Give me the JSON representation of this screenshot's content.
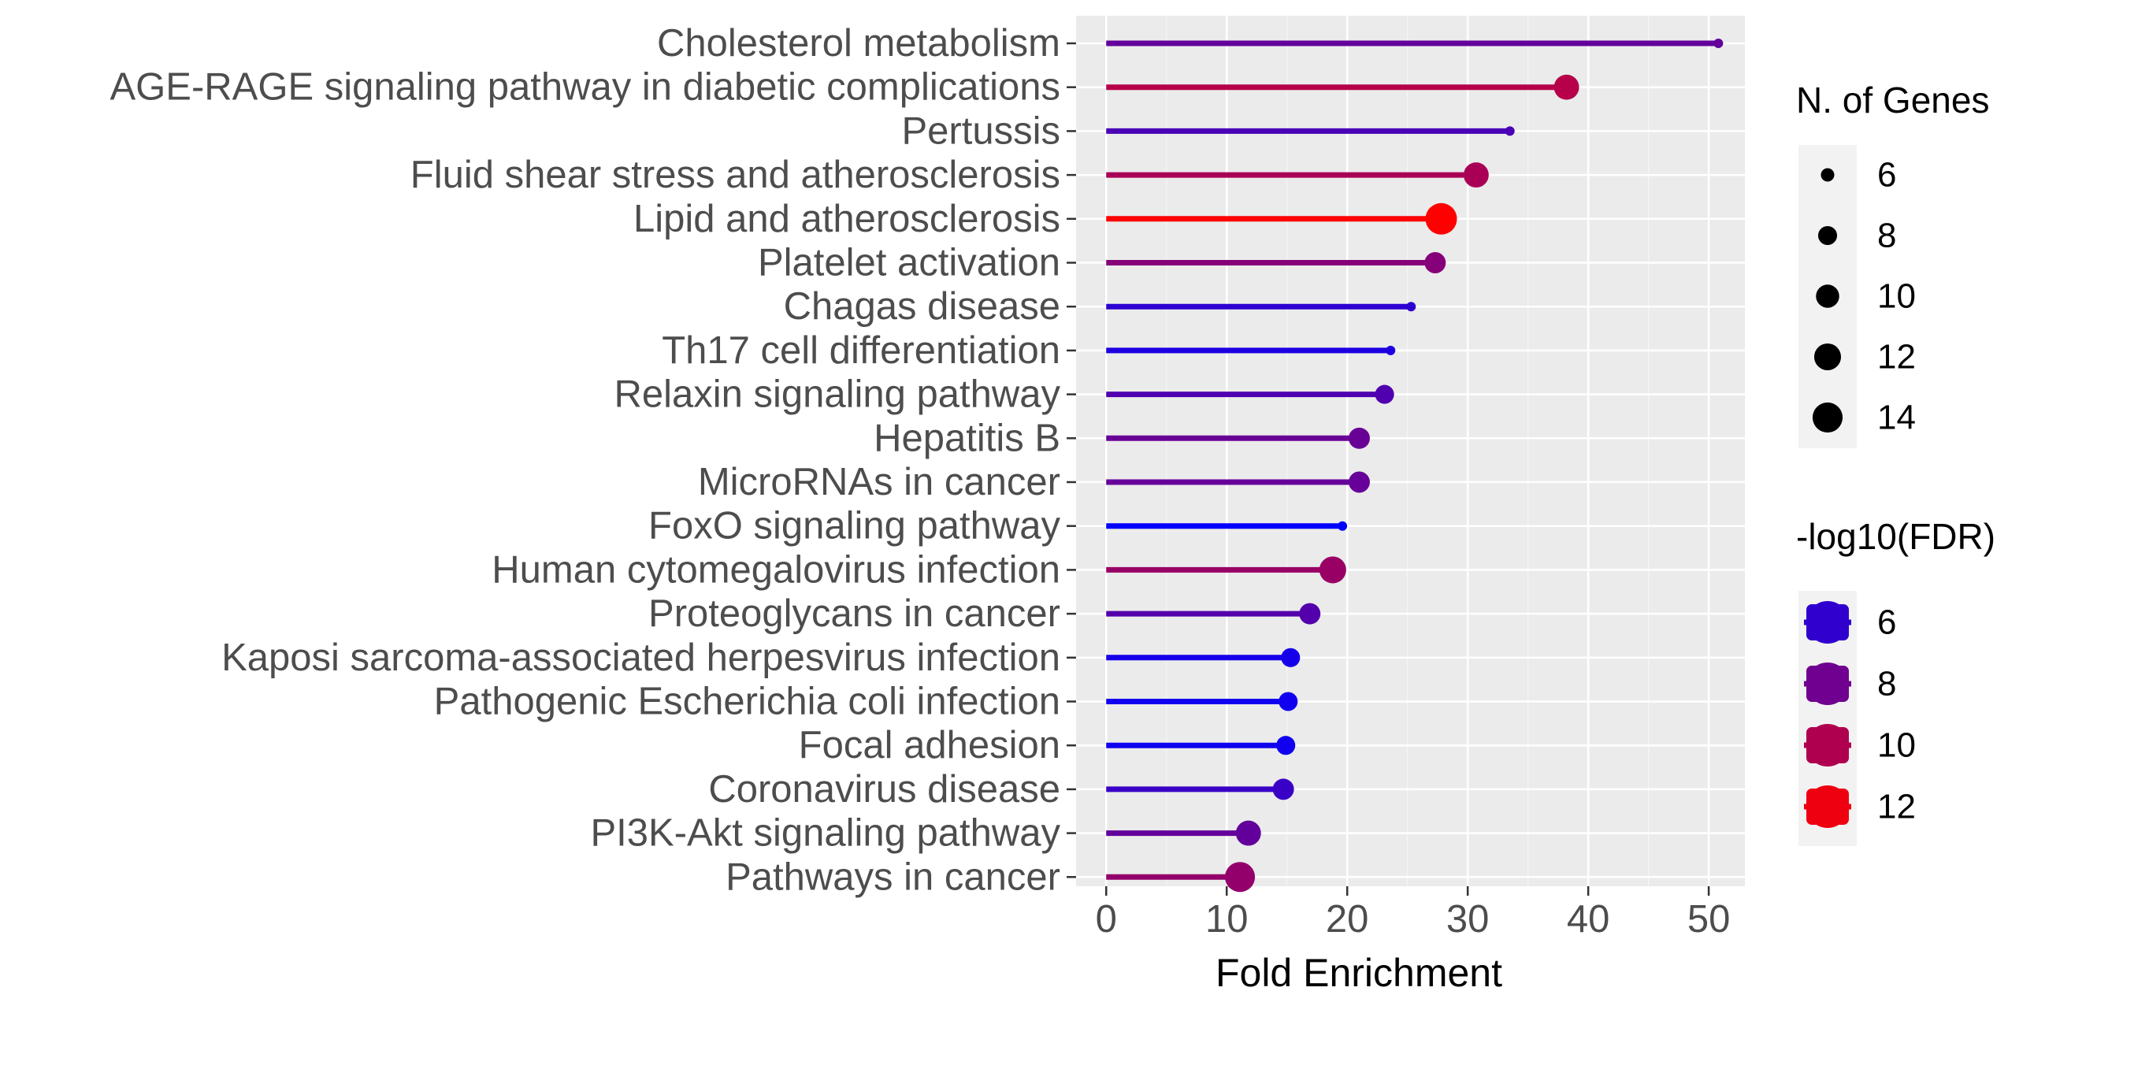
{
  "chart_data": {
    "type": "lollipop",
    "title": "",
    "xlabel": "Fold Enrichment",
    "ylabel": "",
    "xlim": [
      -2.5,
      53
    ],
    "xticks": [
      0,
      10,
      20,
      30,
      40,
      50
    ],
    "categories": [
      "Cholesterol metabolism",
      "AGE-RAGE signaling pathway in diabetic complications",
      "Pertussis",
      "Fluid shear stress and atherosclerosis",
      "Lipid and atherosclerosis",
      "Platelet activation",
      "Chagas disease",
      "Th17 cell differentiation",
      "Relaxin signaling pathway",
      "Hepatitis B",
      "MicroRNAs in cancer",
      "FoxO signaling pathway",
      "Human cytomegalovirus infection",
      "Proteoglycans in cancer",
      "Kaposi sarcoma-associated herpesvirus infection",
      "Pathogenic Escherichia coli infection",
      "Focal adhesion",
      "Coronavirus disease",
      "PI3K-Akt signaling pathway",
      "Pathways in cancer"
    ],
    "series": [
      {
        "name": "Fold Enrichment",
        "values": [
          50.8,
          38.2,
          33.5,
          30.7,
          27.8,
          27.3,
          25.3,
          23.6,
          23.1,
          21.0,
          21.0,
          19.6,
          18.8,
          16.9,
          15.3,
          15.1,
          14.9,
          14.7,
          11.8,
          11.1
        ]
      },
      {
        "name": "N. of Genes",
        "values": [
          5,
          11,
          5,
          11,
          15,
          9,
          5,
          5,
          8,
          9,
          9,
          5,
          12,
          9,
          8,
          8,
          8,
          9,
          11,
          14
        ]
      },
      {
        "name": "-log10(FDR)",
        "values": [
          7.6,
          10.2,
          6.8,
          9.8,
          12.5,
          8.7,
          5.9,
          5.4,
          7.0,
          7.8,
          7.7,
          4.6,
          9.3,
          7.1,
          5.2,
          5.0,
          5.0,
          6.3,
          7.6,
          9.1
        ]
      }
    ],
    "legend_size": {
      "title": "N. of Genes",
      "labels": [
        "6",
        "8",
        "10",
        "12",
        "14"
      ],
      "values": [
        6,
        8,
        10,
        12,
        14
      ]
    },
    "legend_color": {
      "title": "-log10(FDR)",
      "labels": [
        "6",
        "8",
        "10",
        "12"
      ],
      "values": [
        6,
        8,
        10,
        12
      ]
    },
    "colors": {
      "panel_background": "#ebebeb",
      "grid_major": "#ffffff",
      "grid_minor": "#f5f5f5",
      "legend_key_background": "#f2f2f2",
      "scale_low": "#0000ff",
      "scale_high": "#ff0000"
    }
  }
}
